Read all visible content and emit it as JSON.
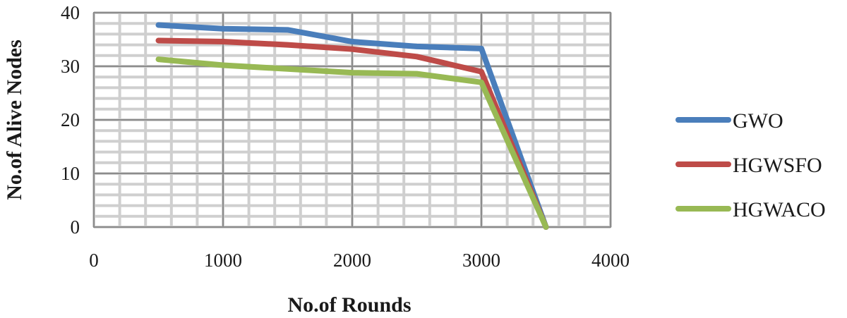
{
  "chart_data": {
    "type": "line",
    "xlabel": "No.of Rounds",
    "ylabel": "No.of Alive Nodes",
    "xlim": [
      0,
      4000
    ],
    "ylim": [
      0,
      40
    ],
    "x_ticks": [
      0,
      1000,
      2000,
      3000,
      4000
    ],
    "y_ticks": [
      0,
      10,
      20,
      30,
      40
    ],
    "grid": true,
    "legend_position": "right",
    "series": [
      {
        "name": "GWO",
        "color": "#4a7ebb",
        "x": [
          500,
          1000,
          1500,
          2000,
          2500,
          3000,
          3500
        ],
        "y": [
          37.7,
          37.0,
          36.8,
          34.6,
          33.7,
          33.3,
          0
        ]
      },
      {
        "name": "HGWSFO",
        "color": "#be4b48",
        "x": [
          500,
          1000,
          1500,
          2000,
          2500,
          3000,
          3500
        ],
        "y": [
          34.8,
          34.6,
          34.0,
          33.2,
          31.8,
          29.0,
          0
        ]
      },
      {
        "name": "HGWACO",
        "color": "#98b954",
        "x": [
          500,
          1000,
          1500,
          2000,
          2500,
          3000,
          3500
        ],
        "y": [
          31.3,
          30.2,
          29.5,
          28.8,
          28.6,
          27.0,
          0
        ]
      }
    ]
  }
}
